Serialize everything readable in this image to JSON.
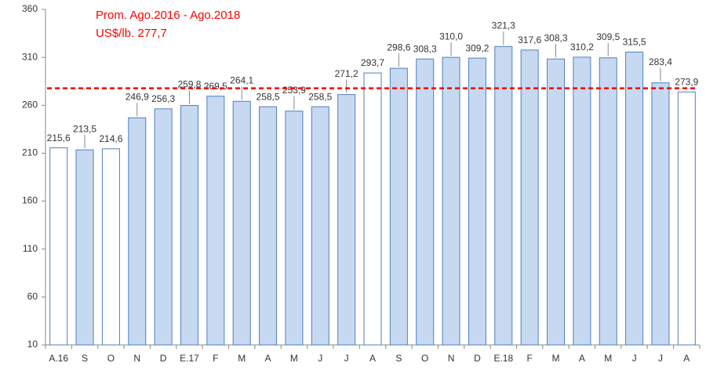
{
  "chart_data": {
    "type": "bar",
    "categories": [
      "A.16",
      "S",
      "O",
      "N",
      "D",
      "E.17",
      "F",
      "M",
      "A",
      "M",
      "J",
      "J",
      "A",
      "S",
      "O",
      "N",
      "D",
      "E.18",
      "F",
      "M",
      "A",
      "M",
      "J",
      "J",
      "A"
    ],
    "values": [
      215.6,
      213.5,
      214.6,
      246.9,
      256.3,
      259.8,
      269.5,
      264.1,
      258.5,
      253.9,
      258.5,
      271.2,
      293.7,
      298.6,
      308.3,
      310.0,
      309.2,
      321.3,
      317.6,
      308.3,
      310.2,
      309.5,
      315.5,
      283.4,
      273.9
    ],
    "value_labels": [
      "215,6",
      "213,5",
      "214,6",
      "246,9",
      "256,3",
      "259,8",
      "269,5",
      "264,1",
      "258,5",
      "253,9",
      "258,5",
      "271,2",
      "293,7",
      "298,6",
      "308,3",
      "310,0",
      "309,2",
      "321,3",
      "317,6",
      "308,3",
      "310,2",
      "309,5",
      "315,5",
      "283,4",
      "273,9"
    ],
    "colors": [
      "#ffffff",
      "#c6d9f1",
      "#ffffff",
      "#c6d9f1",
      "#c6d9f1",
      "#c6d9f1",
      "#c6d9f1",
      "#c6d9f1",
      "#c6d9f1",
      "#c6d9f1",
      "#c6d9f1",
      "#c6d9f1",
      "#ffffff",
      "#c6d9f1",
      "#c6d9f1",
      "#c6d9f1",
      "#c6d9f1",
      "#c6d9f1",
      "#c6d9f1",
      "#c6d9f1",
      "#c6d9f1",
      "#c6d9f1",
      "#c6d9f1",
      "#c6d9f1",
      "#ffffff"
    ],
    "edge_color": "#4f81bd",
    "ylim": [
      10,
      360
    ],
    "yticks": [
      10,
      60,
      110,
      160,
      210,
      260,
      310,
      360
    ],
    "reference_line": {
      "value": 277.7,
      "color": "#ff0000",
      "label_lines": [
        "Prom. Ago.2016 - Ago.2018",
        "US$/lb. 277,7"
      ]
    }
  }
}
